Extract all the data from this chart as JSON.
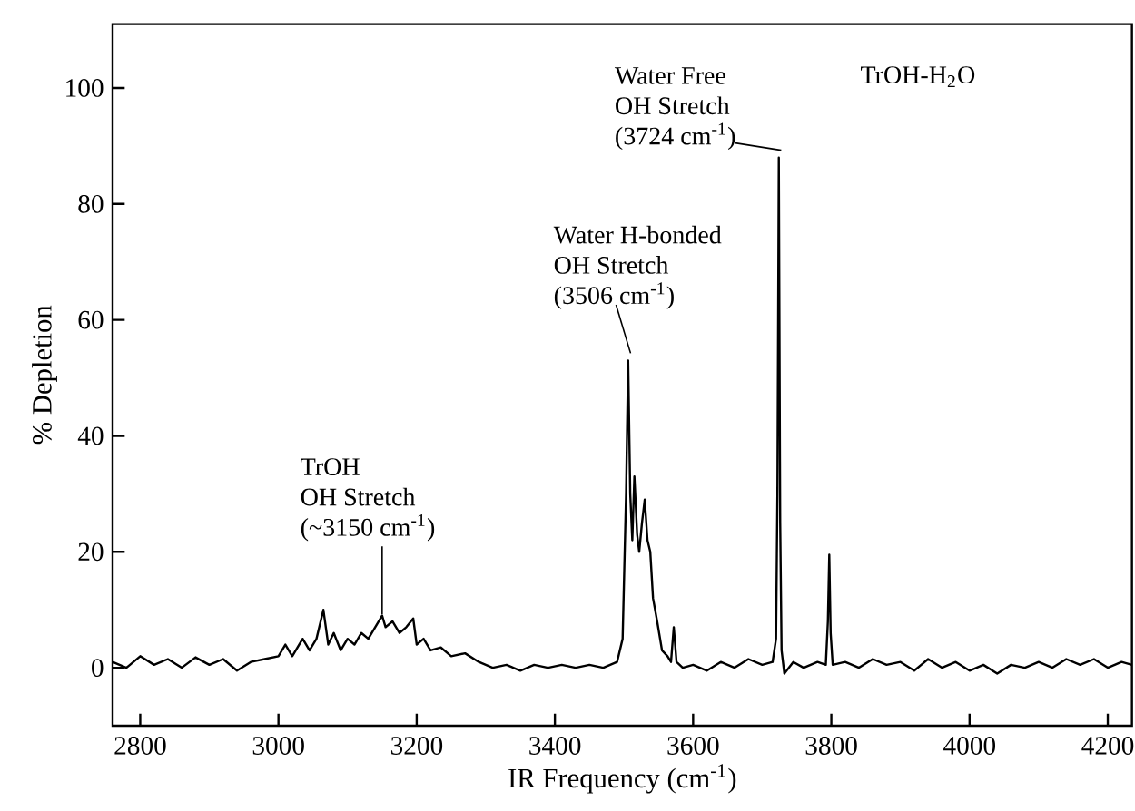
{
  "chart_data": {
    "type": "line",
    "xlabel": "IR Frequency  (cm$^{-1}$)",
    "ylabel": "% Depletion",
    "xlim": [
      2760,
      4235
    ],
    "ylim": [
      -10,
      111
    ],
    "xticks": [
      2800,
      3000,
      3200,
      3400,
      3600,
      3800,
      4000,
      4200
    ],
    "yticks": [
      0,
      20,
      40,
      60,
      80,
      100
    ],
    "annotations": [
      "TrOH-H$_{2}$O",
      {
        "text": "Water Free OH Stretch (3724 cm$^{-1}$)",
        "x": 3724,
        "y": 88
      },
      {
        "text": "Water H-bonded OH Stretch (3506 cm$^{-1}$)",
        "x": 3506,
        "y": 53
      },
      {
        "text": "TrOH OH Stretch (~3150 cm$^{-1}$)",
        "x": 3150,
        "y": 8
      }
    ],
    "x": [
      2760,
      2780,
      2800,
      2820,
      2840,
      2860,
      2880,
      2900,
      2920,
      2940,
      2960,
      2980,
      3000,
      3010,
      3020,
      3035,
      3045,
      3055,
      3065,
      3072,
      3080,
      3090,
      3100,
      3110,
      3120,
      3130,
      3140,
      3150,
      3155,
      3165,
      3175,
      3185,
      3195,
      3200,
      3210,
      3220,
      3235,
      3250,
      3270,
      3290,
      3310,
      3330,
      3350,
      3370,
      3390,
      3410,
      3430,
      3450,
      3470,
      3490,
      3498,
      3503,
      3506,
      3509,
      3512,
      3515,
      3519,
      3522,
      3526,
      3530,
      3534,
      3538,
      3542,
      3548,
      3555,
      3563,
      3568,
      3572,
      3576,
      3585,
      3600,
      3620,
      3640,
      3660,
      3680,
      3700,
      3715,
      3720,
      3722,
      3724,
      3726,
      3728,
      3732,
      3745,
      3760,
      3780,
      3792,
      3795,
      3797,
      3799,
      3802,
      3820,
      3840,
      3860,
      3880,
      3900,
      3920,
      3940,
      3960,
      3980,
      4000,
      4020,
      4040,
      4060,
      4080,
      4100,
      4120,
      4140,
      4160,
      4180,
      4200,
      4220,
      4235
    ],
    "series": [
      {
        "color": "#000000",
        "values": [
          1,
          0,
          2,
          0.5,
          1.5,
          0,
          1.8,
          0.5,
          1.5,
          -0.5,
          1,
          1.5,
          2,
          4,
          2,
          5,
          3,
          5,
          10,
          4,
          6,
          3,
          5,
          4,
          6,
          5,
          7,
          9,
          7,
          8,
          6,
          7,
          8.5,
          4,
          5,
          3,
          3.5,
          2,
          2.5,
          1,
          0,
          0.5,
          -0.5,
          0.5,
          0,
          0.5,
          0,
          0.5,
          0,
          1,
          5,
          30,
          53,
          30,
          22,
          33,
          23,
          20,
          25,
          29,
          22,
          20,
          12,
          8,
          3,
          2,
          1,
          7,
          1,
          0,
          0.5,
          -0.5,
          1,
          0,
          1.5,
          0.5,
          1,
          5,
          30,
          88,
          25,
          3,
          -1,
          1,
          0,
          1,
          0.5,
          8,
          19.5,
          6,
          0.5,
          1,
          0,
          1.5,
          0.5,
          1,
          -0.5,
          1.5,
          0,
          1,
          -0.5,
          0.5,
          -1,
          0.5,
          0,
          1,
          0,
          1.5,
          0.5,
          1.5,
          0,
          1,
          0.5
        ]
      }
    ]
  }
}
